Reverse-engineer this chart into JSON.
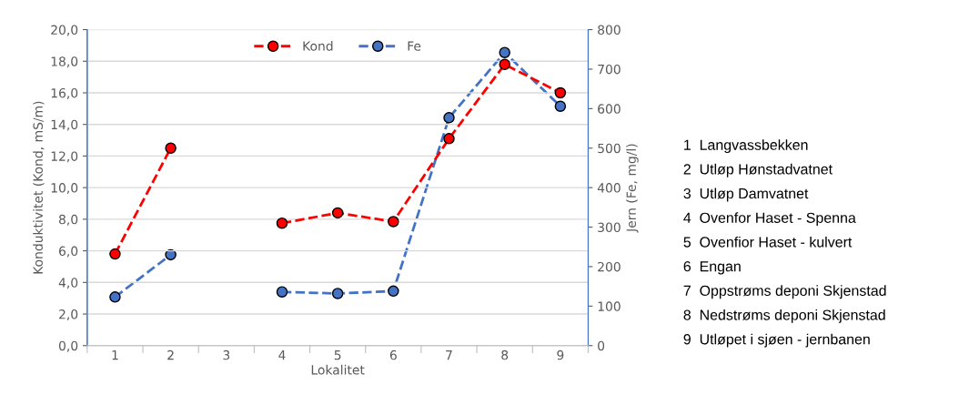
{
  "chart_data": {
    "type": "line",
    "xlabel": "Lokalitet",
    "ylabel": "Konduktivitet (Kond, mS/m)",
    "y2label": "Jern (Fe, mg/l)",
    "categories": [
      "1",
      "2",
      "3",
      "4",
      "5",
      "6",
      "7",
      "8",
      "9"
    ],
    "series": [
      {
        "name": "Kond",
        "color": "#ff0000",
        "values": [
          5.8,
          12.5,
          null,
          7.75,
          8.4,
          7.85,
          13.1,
          17.8,
          16.0
        ]
      },
      {
        "name": "Fe",
        "color": "#4472c4",
        "axis": "y2",
        "values": [
          123,
          230,
          null,
          136,
          132,
          138,
          577,
          742,
          606
        ]
      }
    ],
    "ylim": [
      0,
      20
    ],
    "yticks": [
      {
        "value": 0,
        "label": "0,0"
      },
      {
        "value": 2,
        "label": "2,0"
      },
      {
        "value": 4,
        "label": "4,0"
      },
      {
        "value": 6,
        "label": "6,0"
      },
      {
        "value": 8,
        "label": "8,0"
      },
      {
        "value": 10,
        "label": "10,0"
      },
      {
        "value": 12,
        "label": "12,0"
      },
      {
        "value": 14,
        "label": "14,0"
      },
      {
        "value": 16,
        "label": "16,0"
      },
      {
        "value": 18,
        "label": "18,0"
      },
      {
        "value": 20,
        "label": "20,0"
      }
    ],
    "y2lim": [
      0,
      800
    ],
    "y2ticks": [
      0,
      100,
      200,
      300,
      400,
      500,
      600,
      700,
      800
    ],
    "grid": "y",
    "legend": "top",
    "marker": "circle",
    "line_style": "dashed",
    "annotations": [
      "1  Langvassbekken",
      "2  Utløp Hønstadvatnet",
      "3  Utløp Damvatnet",
      "4  Ovenfor Haset - Spenna",
      "5  Ovenfior Haset - kulvert",
      "6  Engan",
      "7  Oppstrøms deponi Skjenstad",
      "8  Nedstrøms deponi Skjenstad",
      "9  Utløpet i sjøen - jernbanen"
    ]
  }
}
